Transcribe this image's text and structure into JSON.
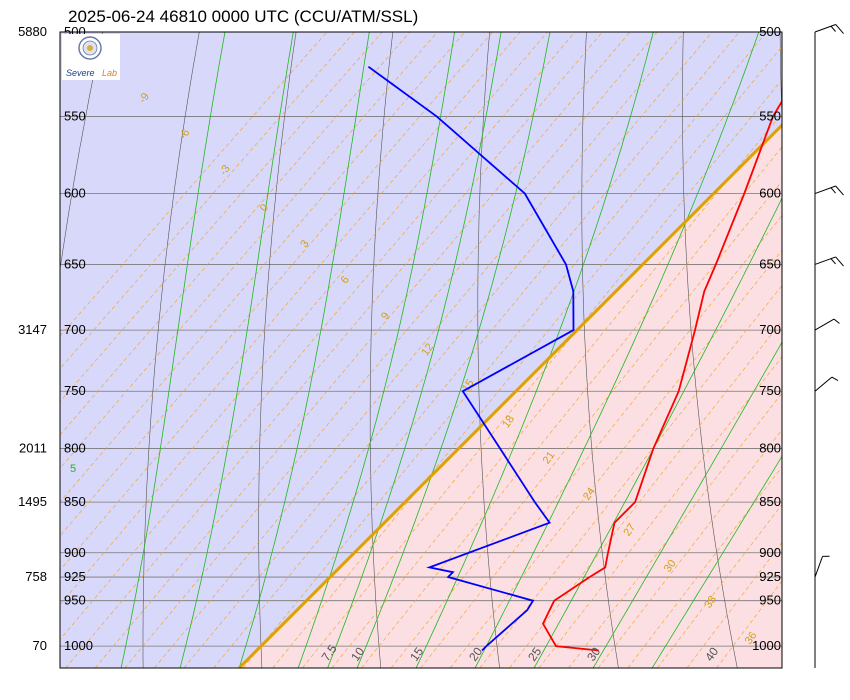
{
  "title": "2025-06-24 46810 0000 UTC (CCU/ATM/SSL)",
  "logo": {
    "text_left": "Severe",
    "text_right": "Lab"
  },
  "colors": {
    "temperature": "#ff0000",
    "dewpoint": "#0000ff",
    "isotherm_zero": "#e0a000",
    "moist_adiabat": "#1fb81f",
    "dry_adiabat": "#555555",
    "mixing_ratio": "#f0a020",
    "cold_shade": "#d8d8fa",
    "warm_shade": "#fbdfe2"
  },
  "chart_data": {
    "type": "skew-t log-p",
    "pressure_levels": [
      500,
      550,
      600,
      650,
      700,
      750,
      800,
      850,
      900,
      925,
      950,
      1000
    ],
    "height_labels": [
      {
        "p": 500,
        "h": "5880"
      },
      {
        "p": 700,
        "h": "3147"
      },
      {
        "p": 800,
        "h": "2011"
      },
      {
        "p": 850,
        "h": "1495"
      },
      {
        "p": 925,
        "h": "758"
      },
      {
        "p": 1000,
        "h": "70"
      }
    ],
    "temperature_axis_labels": [
      "7.5",
      "10",
      "15",
      "20",
      "25",
      "30",
      "40"
    ],
    "mixing_ratio_labels": [
      "-9",
      "-6",
      "-3",
      "0",
      "3",
      "6",
      "9",
      "12",
      "15",
      "18",
      "21",
      "24",
      "27",
      "30",
      "33",
      "36"
    ],
    "moist_adiabat_label": "5",
    "temperature": [
      {
        "p": 1005,
        "t": 29.0
      },
      {
        "p": 1000,
        "t": 25.0
      },
      {
        "p": 975,
        "t": 22.0
      },
      {
        "p": 950,
        "t": 21.0
      },
      {
        "p": 925,
        "t": 22.0
      },
      {
        "p": 915,
        "t": 22.5
      },
      {
        "p": 900,
        "t": 21.5
      },
      {
        "p": 870,
        "t": 19.5
      },
      {
        "p": 850,
        "t": 19.5
      },
      {
        "p": 800,
        "t": 16.5
      },
      {
        "p": 750,
        "t": 13.8
      },
      {
        "p": 700,
        "t": 10.0
      },
      {
        "p": 670,
        "t": 7.5
      },
      {
        "p": 650,
        "t": 6.2
      },
      {
        "p": 600,
        "t": 2.6
      },
      {
        "p": 550,
        "t": -1.5
      },
      {
        "p": 520,
        "t": -3.2
      },
      {
        "p": 500,
        "t": -4.0
      }
    ],
    "dewpoint": [
      {
        "p": 1005,
        "t": 19.1
      },
      {
        "p": 1000,
        "t": 19.1
      },
      {
        "p": 960,
        "t": 19.5
      },
      {
        "p": 950,
        "t": 19.2
      },
      {
        "p": 925,
        "t": 10.0
      },
      {
        "p": 920,
        "t": 10.0
      },
      {
        "p": 915,
        "t": 7.6
      },
      {
        "p": 870,
        "t": 14.0
      },
      {
        "p": 850,
        "t": 11.0
      },
      {
        "p": 800,
        "t": 3.5
      },
      {
        "p": 750,
        "t": -4.5
      },
      {
        "p": 700,
        "t": -0.3
      },
      {
        "p": 670,
        "t": -3.6
      },
      {
        "p": 650,
        "t": -6.5
      },
      {
        "p": 600,
        "t": -16.0
      },
      {
        "p": 550,
        "t": -30.0
      },
      {
        "p": 520,
        "t": -40.0
      }
    ],
    "wind_barbs": [
      {
        "p": 500,
        "dir": 250,
        "speed": 10
      },
      {
        "p": 600,
        "dir": 250,
        "speed": 10
      },
      {
        "p": 650,
        "dir": 250,
        "speed": 10
      },
      {
        "p": 700,
        "dir": 240,
        "speed": 5
      },
      {
        "p": 750,
        "dir": 230,
        "speed": 5
      },
      {
        "p": 925,
        "dir": 200,
        "speed": 5
      }
    ]
  }
}
